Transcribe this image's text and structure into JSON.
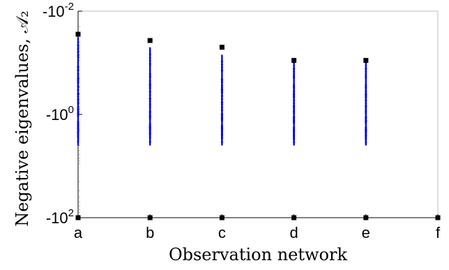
{
  "chart_data": {
    "type": "scatter",
    "xlabel": "Observation network",
    "ylabel": "Negative eigenvalues, 𝒜₂",
    "categories": [
      "a",
      "b",
      "c",
      "d",
      "e",
      "f"
    ],
    "y_scale": "negative-log",
    "ylim": [
      -100,
      -0.01
    ],
    "yticks": [
      {
        "value": -0.01,
        "label": "-10",
        "exp": "-2"
      },
      {
        "value": -1,
        "label": "-10",
        "exp": "0"
      },
      {
        "value": -100,
        "label": "-10",
        "exp": "2"
      }
    ],
    "grid": false,
    "series": [
      {
        "values": [
          {
            "category": "a",
            "min_eigenvalue": -100,
            "max_eigenvalue": -0.028,
            "cluster_range": [
              -4.0,
              -0.032
            ]
          },
          {
            "category": "b",
            "min_eigenvalue": -100,
            "max_eigenvalue": -0.037,
            "cluster_range": [
              -4.0,
              -0.05
            ]
          },
          {
            "category": "c",
            "min_eigenvalue": -100,
            "max_eigenvalue": -0.05,
            "cluster_range": [
              -4.0,
              -0.07
            ]
          },
          {
            "category": "d",
            "min_eigenvalue": -100,
            "max_eigenvalue": -0.09,
            "cluster_range": [
              -4.0,
              -0.1
            ]
          },
          {
            "category": "e",
            "min_eigenvalue": -100,
            "max_eigenvalue": -0.09,
            "cluster_range": [
              -4.0,
              -0.1
            ]
          },
          {
            "category": "f",
            "min_eigenvalue": -100,
            "max_eigenvalue": null,
            "cluster_range": null
          }
        ]
      }
    ],
    "colors": {
      "extreme_marker": "#000000",
      "cluster": "#0000ff",
      "axes": "#000000"
    }
  }
}
